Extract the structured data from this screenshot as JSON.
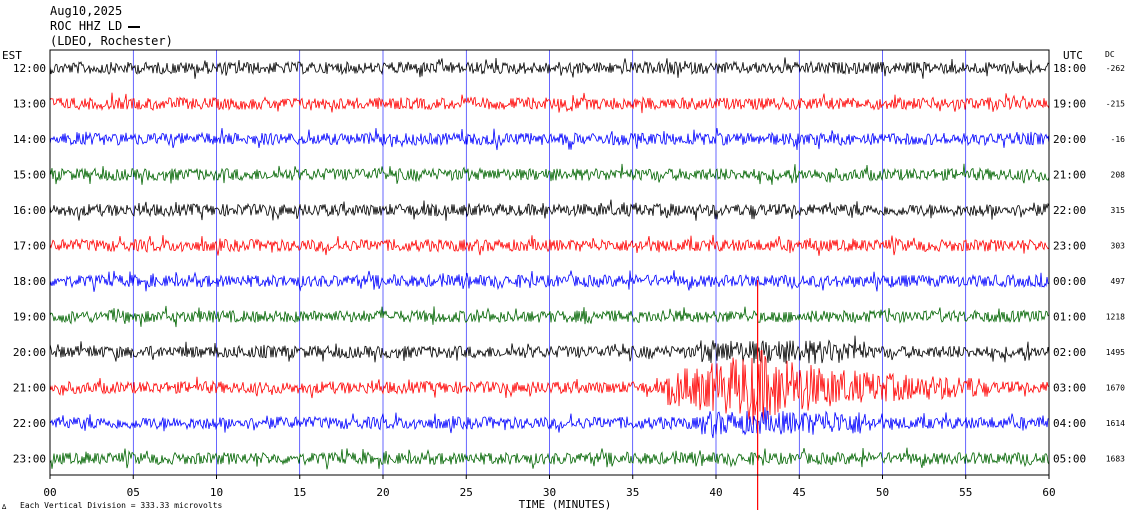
{
  "chart_data": {
    "type": "line",
    "header": {
      "date": "Aug10,2025",
      "station": "ROC HHZ LD",
      "network": "(LDEO, Rochester)"
    },
    "left_axis_title": "EST",
    "right_axis_title": "UTC",
    "dc_title": "DC",
    "xlabel": "TIME (MINUTES)",
    "xlim": [
      0,
      60
    ],
    "x_ticks": [
      "00",
      "05",
      "10",
      "15",
      "20",
      "25",
      "30",
      "35",
      "40",
      "45",
      "50",
      "55",
      "60"
    ],
    "scale_note": "Each Vertical Division = 333.33 microvolts",
    "corner_mark": "∆",
    "colors": {
      "black": "#000000",
      "red": "#ff0000",
      "blue": "#0000ff",
      "green": "#006400",
      "grid": "#0000ff"
    },
    "rows": [
      {
        "est": "12:00",
        "utc": "18:00",
        "dc": "-262",
        "color": "#000000"
      },
      {
        "est": "13:00",
        "utc": "19:00",
        "dc": "-215",
        "color": "#ff0000"
      },
      {
        "est": "14:00",
        "utc": "20:00",
        "dc": "-16",
        "color": "#0000ff"
      },
      {
        "est": "15:00",
        "utc": "21:00",
        "dc": "208",
        "color": "#006400"
      },
      {
        "est": "16:00",
        "utc": "22:00",
        "dc": "315",
        "color": "#000000"
      },
      {
        "est": "17:00",
        "utc": "23:00",
        "dc": "303",
        "color": "#ff0000"
      },
      {
        "est": "18:00",
        "utc": "00:00",
        "dc": "497",
        "color": "#0000ff"
      },
      {
        "est": "19:00",
        "utc": "01:00",
        "dc": "1218",
        "color": "#006400"
      },
      {
        "est": "20:00",
        "utc": "02:00",
        "dc": "1495",
        "color": "#000000"
      },
      {
        "est": "21:00",
        "utc": "03:00",
        "dc": "1670",
        "color": "#ff0000"
      },
      {
        "est": "22:00",
        "utc": "04:00",
        "dc": "1614",
        "color": "#0000ff"
      },
      {
        "est": "23:00",
        "utc": "05:00",
        "dc": "1683",
        "color": "#006400"
      }
    ],
    "event": {
      "row": 9,
      "start_min": 37,
      "end_min": 56,
      "peak_min": 42.5
    }
  }
}
